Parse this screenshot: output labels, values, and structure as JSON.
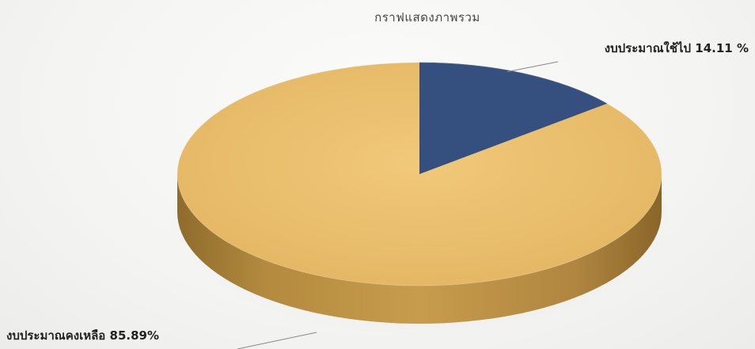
{
  "chart_data": {
    "type": "pie",
    "title": "กราฟแสดงภาพรวม",
    "slices": [
      {
        "label": "งบประมาณใช้ไป 14.11 %",
        "value": 14.11,
        "color": "#35507f"
      },
      {
        "label": "งบประมาณคงเหลือ 85.89%",
        "value": 85.89,
        "color": "#e8be6a"
      }
    ],
    "style": "3d",
    "legend": "none"
  }
}
